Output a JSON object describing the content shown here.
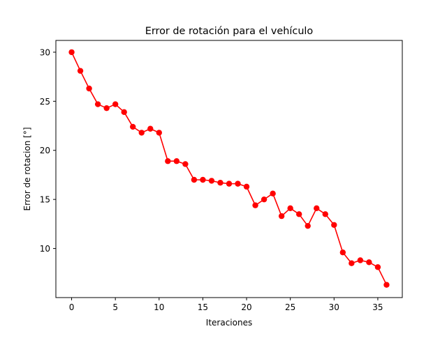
{
  "chart_data": {
    "type": "line",
    "title": "Error de rotación para el vehículo",
    "xlabel": "Iteraciones",
    "ylabel": "Error de rotacion [°]",
    "xlim": [
      -1.8,
      37.8
    ],
    "ylim": [
      5.0,
      31.2
    ],
    "xticks": [
      0,
      5,
      10,
      15,
      20,
      25,
      30,
      35
    ],
    "yticks": [
      10,
      15,
      20,
      25,
      30
    ],
    "grid": false,
    "legend": "none",
    "series": [
      {
        "color": "#ff0000",
        "marker": "circle",
        "x": [
          0,
          1,
          2,
          3,
          4,
          5,
          6,
          7,
          8,
          9,
          10,
          11,
          12,
          13,
          14,
          15,
          16,
          17,
          18,
          19,
          20,
          21,
          22,
          23,
          24,
          25,
          26,
          27,
          28,
          29,
          30,
          31,
          32,
          33,
          34,
          35,
          36
        ],
        "values": [
          30.0,
          28.1,
          26.3,
          24.7,
          24.3,
          24.7,
          23.9,
          22.4,
          21.8,
          22.2,
          21.8,
          18.9,
          18.9,
          18.6,
          17.0,
          17.0,
          16.9,
          16.7,
          16.6,
          16.6,
          16.3,
          14.4,
          15.0,
          15.6,
          13.3,
          14.1,
          13.5,
          12.3,
          14.1,
          13.5,
          12.4,
          9.6,
          8.5,
          8.8,
          8.6,
          8.1,
          6.3
        ]
      }
    ]
  }
}
